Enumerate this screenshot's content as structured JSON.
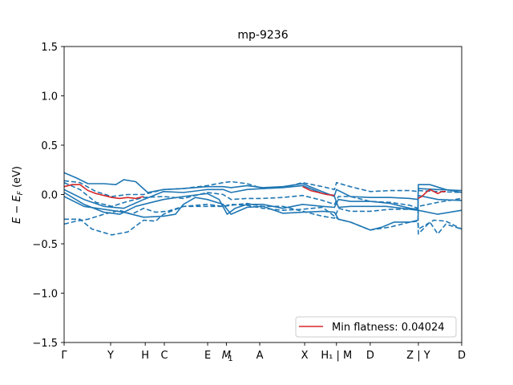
{
  "chart_data": {
    "type": "line",
    "title": "mp-9236",
    "ylabel": "E − E_F (eV)",
    "ylabel_parts": {
      "E1": "E",
      "minus": " − ",
      "E2": "E",
      "sub": "F",
      "unit": " (eV)"
    },
    "xlabel": "",
    "ylim": [
      -1.5,
      1.5
    ],
    "yticks": [
      -1.5,
      -1.0,
      -0.5,
      0.0,
      0.5,
      1.0,
      1.5
    ],
    "ytick_labels": [
      "−1.5",
      "−1.0",
      "−0.5",
      "0.0",
      "0.5",
      "1.0",
      "1.5"
    ],
    "xlim": [
      0,
      100
    ],
    "xticks": [
      {
        "label": "Γ",
        "x": 0
      },
      {
        "label": "Y",
        "x": 11.7
      },
      {
        "label": "H",
        "x": 20.4
      },
      {
        "label": "C",
        "x": 25.2
      },
      {
        "label": "E",
        "x": 36.1
      },
      {
        "label": "M",
        "x": 40.8
      },
      {
        "label": "1",
        "x": 42.0,
        "subscript_only": true
      },
      {
        "label": "A",
        "x": 49.2
      },
      {
        "label": "X",
        "x": 60.5
      },
      {
        "label": "H₁ | M",
        "x": 68.5
      },
      {
        "label": "D",
        "x": 77.0
      },
      {
        "label": "Z | Y",
        "x": 89.1
      },
      {
        "label": "D",
        "x": 100
      }
    ],
    "grid": false,
    "legend": {
      "position": "lower-right",
      "entries": [
        "Min flatness: 0.04024"
      ]
    },
    "colors": {
      "bands": "#1f77b4",
      "flat_band": "#d62728"
    },
    "series": [
      {
        "name": "",
        "style": "solid",
        "x": [
          0,
          3,
          6,
          10,
          13,
          15,
          18,
          21,
          25,
          30,
          36,
          40,
          42,
          46,
          50,
          55,
          60,
          63,
          68,
          69,
          72,
          77,
          81,
          87,
          89,
          89.1,
          92,
          96,
          100
        ],
        "y": [
          0.22,
          0.17,
          0.11,
          0.11,
          0.1,
          0.15,
          0.13,
          0.02,
          0.05,
          0.06,
          0.08,
          0.08,
          0.07,
          0.09,
          0.07,
          0.08,
          0.11,
          0.06,
          -0.02,
          -0.13,
          -0.12,
          -0.12,
          -0.12,
          -0.15,
          -0.16,
          0.1,
          0.1,
          0.05,
          0.02
        ]
      },
      {
        "name": "",
        "style": "solid",
        "x": [
          0,
          5,
          10,
          15,
          20,
          25,
          30,
          36,
          40,
          42,
          46,
          50,
          55,
          60,
          65,
          68,
          68.5,
          72,
          77,
          82,
          87,
          89,
          89.1,
          94,
          100
        ],
        "y": [
          0.05,
          -0.05,
          -0.12,
          -0.14,
          -0.05,
          0.03,
          0.02,
          0.05,
          0.05,
          0.02,
          0.05,
          0.06,
          0.07,
          0.09,
          0.01,
          -0.01,
          0.05,
          -0.02,
          -0.03,
          -0.03,
          -0.04,
          -0.05,
          0.06,
          0.05,
          0.04
        ]
      },
      {
        "name": "",
        "style": "solid",
        "x": [
          0,
          5,
          10,
          14,
          18,
          22,
          25,
          30,
          36,
          39,
          41,
          43,
          46,
          50,
          55,
          60,
          65,
          68,
          69,
          72,
          77,
          82,
          87,
          89,
          89.1,
          94,
          100
        ],
        "y": [
          0.02,
          -0.1,
          -0.18,
          -0.2,
          -0.12,
          -0.08,
          -0.05,
          -0.02,
          0.01,
          -0.05,
          -0.2,
          -0.14,
          -0.1,
          -0.1,
          -0.14,
          -0.1,
          -0.12,
          -0.13,
          -0.05,
          -0.07,
          -0.07,
          -0.09,
          -0.14,
          -0.15,
          -0.01,
          -0.05,
          -0.06
        ]
      },
      {
        "name": "",
        "style": "solid",
        "x": [
          0,
          5,
          10,
          15,
          20,
          25,
          28,
          30,
          33,
          36,
          40,
          42,
          46,
          50,
          55,
          60,
          65,
          68,
          69,
          72,
          77,
          80,
          83,
          87,
          89,
          89.1,
          94,
          100
        ],
        "y": [
          -0.02,
          -0.12,
          -0.15,
          -0.18,
          -0.23,
          -0.22,
          -0.2,
          -0.1,
          -0.03,
          -0.05,
          -0.1,
          -0.2,
          -0.13,
          -0.12,
          -0.19,
          -0.18,
          -0.17,
          -0.18,
          -0.25,
          -0.28,
          -0.36,
          -0.33,
          -0.28,
          -0.28,
          -0.26,
          -0.16,
          -0.2,
          -0.16
        ]
      },
      {
        "name": "",
        "style": "dashed",
        "x": [
          0,
          4,
          8,
          12,
          16,
          20,
          25,
          30,
          36,
          40,
          42,
          46,
          50,
          55,
          60,
          65,
          68,
          68.5,
          72,
          77,
          82,
          87,
          89,
          89.1,
          94,
          100
        ],
        "y": [
          0.14,
          0.12,
          0.03,
          -0.02,
          0.0,
          0.0,
          0.05,
          0.06,
          0.09,
          0.12,
          0.13,
          0.11,
          0.06,
          0.07,
          0.12,
          0.08,
          0.05,
          0.12,
          0.08,
          0.03,
          0.04,
          0.04,
          0.03,
          0.04,
          0.03,
          0.02
        ]
      },
      {
        "name": "",
        "style": "dashed",
        "x": [
          0,
          4,
          8,
          12,
          16,
          20,
          25,
          30,
          36,
          40,
          42,
          46,
          50,
          55,
          60,
          65,
          68,
          69,
          72,
          77,
          82,
          87,
          89,
          89.1,
          94,
          100
        ],
        "y": [
          0.12,
          0.05,
          -0.08,
          -0.12,
          -0.07,
          -0.03,
          -0.02,
          -0.04,
          0.02,
          0.0,
          -0.05,
          -0.04,
          -0.04,
          -0.03,
          -0.01,
          -0.06,
          -0.1,
          -0.02,
          -0.02,
          -0.07,
          -0.08,
          -0.11,
          -0.14,
          -0.12,
          -0.08,
          -0.04
        ]
      },
      {
        "name": "",
        "style": "dashed",
        "x": [
          0,
          3,
          6,
          10,
          14,
          17,
          20,
          23,
          26,
          30,
          36,
          40,
          42,
          46,
          50,
          55,
          60,
          65,
          68,
          69,
          72,
          77,
          82,
          87,
          89,
          89.1,
          92,
          94,
          96,
          100
        ],
        "y": [
          -0.3,
          -0.27,
          -0.25,
          -0.2,
          -0.16,
          -0.2,
          -0.14,
          -0.18,
          -0.17,
          -0.12,
          -0.12,
          -0.12,
          -0.1,
          -0.11,
          -0.14,
          -0.16,
          -0.15,
          -0.13,
          -0.22,
          -0.25,
          -0.28,
          -0.36,
          -0.33,
          -0.28,
          -0.27,
          -0.4,
          -0.28,
          -0.4,
          -0.3,
          -0.35
        ]
      },
      {
        "name": "",
        "style": "dashed",
        "x": [
          0,
          4,
          7,
          12,
          16,
          20,
          23,
          25,
          30,
          36,
          40,
          42,
          46,
          50,
          55,
          60,
          65,
          68,
          69,
          72,
          77,
          82,
          87,
          89,
          89.1,
          93,
          96,
          100
        ],
        "y": [
          -0.25,
          -0.25,
          -0.35,
          -0.41,
          -0.38,
          -0.26,
          -0.27,
          -0.2,
          -0.12,
          -0.1,
          -0.12,
          -0.11,
          -0.09,
          -0.12,
          -0.12,
          -0.17,
          -0.22,
          -0.24,
          -0.14,
          -0.17,
          -0.17,
          -0.15,
          -0.15,
          -0.15,
          -0.35,
          -0.26,
          -0.27,
          -0.35
        ]
      }
    ],
    "flat_band": {
      "name": "Min flatness: 0.04024",
      "segments": [
        {
          "x": [
            0,
            2,
            4,
            6,
            8,
            10,
            12,
            14,
            16,
            18,
            20
          ],
          "y": [
            0.08,
            0.1,
            0.1,
            0.04,
            0.01,
            -0.01,
            -0.03,
            -0.04,
            -0.03,
            -0.04,
            -0.02
          ]
        },
        {
          "x": [
            60,
            62,
            64,
            66,
            68
          ],
          "y": [
            0.08,
            0.04,
            0.02,
            0.0,
            -0.01
          ]
        },
        {
          "x": [
            89,
            90,
            91,
            92,
            93,
            94,
            95,
            96
          ],
          "y": [
            -0.04,
            -0.02,
            0.02,
            0.05,
            0.03,
            0.01,
            0.03,
            0.03
          ]
        }
      ]
    }
  }
}
